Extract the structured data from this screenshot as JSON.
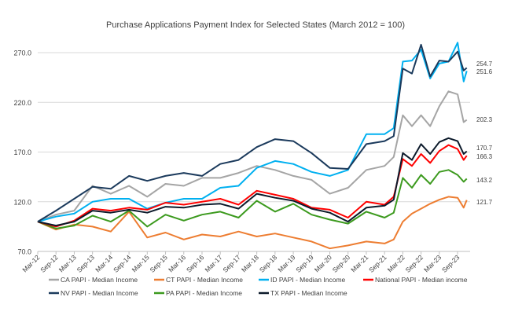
{
  "chart_data": {
    "type": "line",
    "title": "Purchase Applications Payment Index for Selected States (March 2012 = 100)",
    "xlabel": "",
    "ylabel": "",
    "ylim": [
      70,
      270
    ],
    "grid": true,
    "legend_position": "bottom",
    "y_ticks": [
      "70.0",
      "120.0",
      "170.0",
      "220.0",
      "270.0"
    ],
    "y_tick_values": [
      70,
      120,
      170,
      220,
      270
    ],
    "x_ticks": [
      "Mar-12",
      "Sep-12",
      "Mar-13",
      "Sep-13",
      "Mar-14",
      "Sep-14",
      "Mar-15",
      "Sep-15",
      "Mar-16",
      "Sep-16",
      "Mar-17",
      "Sep-17",
      "Mar-18",
      "Sep-18",
      "Mar-19",
      "Sep-19",
      "Mar-20",
      "Sep-20",
      "Mar-21",
      "Sep-21",
      "Mar-22",
      "Sep-22",
      "Mar-23",
      "Sep-23"
    ],
    "x_months_since_mar12": [
      0,
      6,
      12,
      18,
      24,
      30,
      36,
      42,
      48,
      54,
      60,
      66,
      72,
      78,
      84,
      90,
      96,
      102,
      108,
      114,
      117,
      120,
      123,
      126,
      129,
      132,
      135,
      138,
      140,
      141
    ],
    "series": [
      {
        "name": "CA PAPI - Median Income",
        "color": "#a5a5a5",
        "end_label": "202.3",
        "values": [
          100,
          107,
          111,
          136,
          128,
          136,
          125,
          138,
          136,
          144,
          144,
          149,
          156,
          152,
          146,
          142,
          128,
          134,
          152,
          156,
          165,
          207,
          196,
          207,
          196,
          216,
          231,
          228,
          200,
          202.3
        ]
      },
      {
        "name": "CT PAPI - Median Income",
        "color": "#ed7d31",
        "end_label": "121.7",
        "values": [
          100,
          92,
          97,
          95,
          90,
          110,
          84,
          89,
          82,
          87,
          85,
          90,
          85,
          88,
          84,
          80,
          73,
          76,
          80,
          78,
          82,
          100,
          108,
          113,
          118,
          122,
          125,
          124,
          114,
          121.7
        ]
      },
      {
        "name": "ID PAPI - Median Income",
        "color": "#00b0f0",
        "end_label": "251.6",
        "values": [
          100,
          105,
          108,
          120,
          123,
          123,
          113,
          119,
          123,
          123,
          134,
          136,
          154,
          161,
          158,
          150,
          146,
          152,
          188,
          188,
          194,
          261,
          262,
          273,
          244,
          259,
          261,
          280,
          241,
          251.6
        ]
      },
      {
        "name": "National PAPI - Median income",
        "color": "#ff0000",
        "end_label": "166.3",
        "values": [
          100,
          95,
          101,
          113,
          111,
          114,
          112,
          119,
          117,
          120,
          123,
          117,
          131,
          127,
          123,
          114,
          112,
          104,
          120,
          117,
          125,
          163,
          156,
          168,
          159,
          171,
          177,
          173,
          162,
          166.3
        ]
      },
      {
        "name": "NV PAPI - Median Income",
        "color": "#1b3a5c",
        "end_label": "254.7",
        "values": [
          100,
          111,
          123,
          135,
          133,
          146,
          141,
          146,
          149,
          146,
          158,
          162,
          175,
          183,
          181,
          169,
          154,
          153,
          178,
          181,
          186,
          254,
          249,
          278,
          246,
          262,
          261,
          271,
          252,
          254.7
        ]
      },
      {
        "name": "PA PAPI - Median Income",
        "color": "#3c9a1e",
        "end_label": "143.2",
        "values": [
          100,
          93,
          96,
          106,
          100,
          111,
          95,
          107,
          101,
          107,
          110,
          104,
          121,
          110,
          118,
          107,
          102,
          98,
          110,
          104,
          109,
          144,
          134,
          147,
          138,
          150,
          152,
          147,
          140,
          143.2
        ]
      },
      {
        "name": "TX PAPI - Median Income",
        "color": "#0c1a2b",
        "end_label": "170.7",
        "values": [
          100,
          96,
          100,
          111,
          109,
          112,
          109,
          115,
          114,
          117,
          118,
          113,
          128,
          124,
          121,
          113,
          109,
          100,
          114,
          116,
          122,
          169,
          162,
          178,
          168,
          180,
          184,
          181,
          168,
          170.7
        ]
      }
    ]
  }
}
